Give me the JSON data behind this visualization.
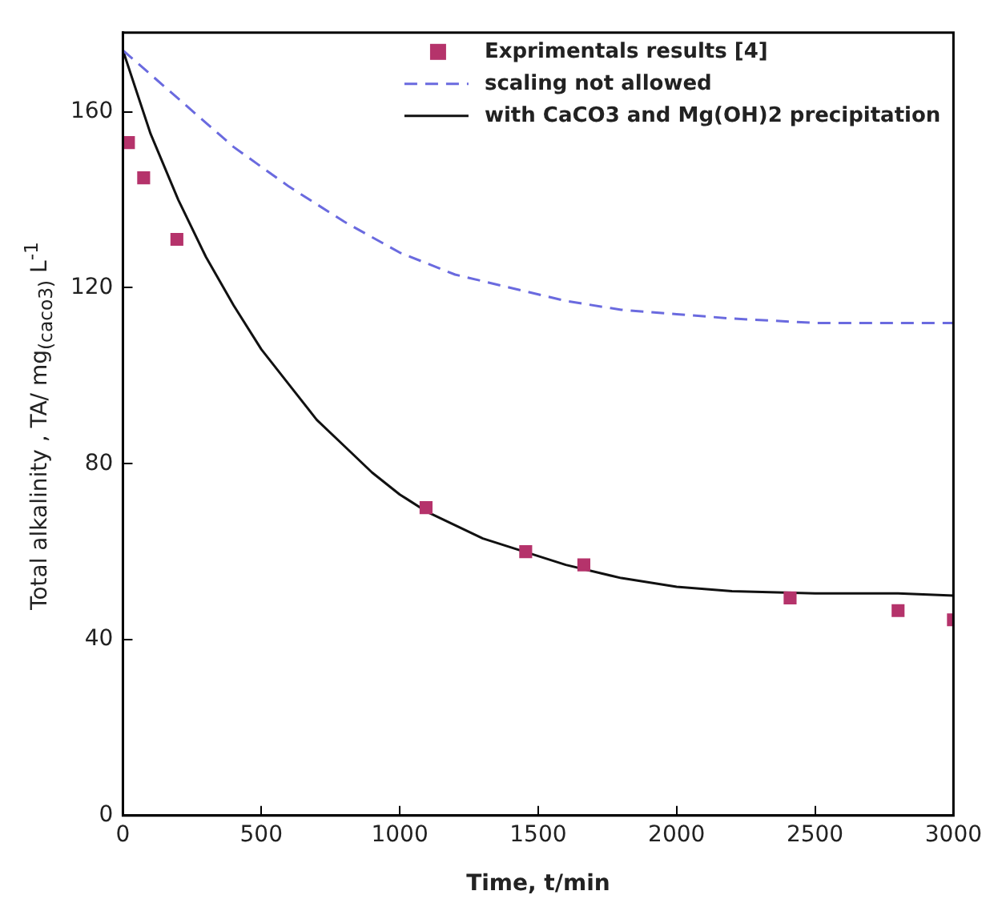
{
  "chart_data": {
    "type": "line",
    "xlabel": "Time, t/min",
    "ylabel": "Total alkalinity , TA/ mg$_{(caco3)}$ L$^{-1}$",
    "xlim": [
      0,
      3000
    ],
    "xticks": [
      0,
      500,
      1000,
      1500,
      2000,
      2500,
      3000
    ],
    "ylim": [
      0,
      178
    ],
    "yticks": [
      0,
      40,
      80,
      120,
      160
    ],
    "legend": "top right",
    "grid": false,
    "series": [
      {
        "name": "Exprimentals results [4]",
        "type": "scatter",
        "marker": "square",
        "color": "#b5336b",
        "x": [
          20,
          75,
          195,
          1095,
          1455,
          1665,
          2410,
          2800,
          3000
        ],
        "values": [
          153,
          145,
          131,
          70,
          60,
          57,
          49.5,
          46.6,
          44.5
        ]
      },
      {
        "name": "scaling not allowed",
        "type": "line",
        "line_style": "dashed",
        "color": "#6a6adf",
        "x": [
          0,
          200,
          400,
          600,
          800,
          1000,
          1200,
          1400,
          1600,
          1800,
          2000,
          2200,
          2500,
          2800,
          3000
        ],
        "values": [
          174,
          163,
          152,
          143,
          135,
          128,
          123,
          120,
          117,
          115,
          114,
          113,
          112,
          112,
          112
        ]
      },
      {
        "name": "with CaCO3 and Mg(OH)2 precipitation",
        "type": "line",
        "line_style": "solid",
        "color": "#111111",
        "x": [
          0,
          100,
          200,
          300,
          400,
          500,
          600,
          700,
          800,
          900,
          1000,
          1100,
          1200,
          1300,
          1400,
          1500,
          1600,
          1800,
          2000,
          2200,
          2500,
          2800,
          3000
        ],
        "values": [
          174,
          155,
          140,
          127,
          116,
          106,
          98,
          90,
          84,
          78,
          73,
          69,
          66,
          63,
          61,
          59,
          57,
          54,
          52,
          51,
          50.5,
          50.5,
          50
        ]
      }
    ]
  }
}
